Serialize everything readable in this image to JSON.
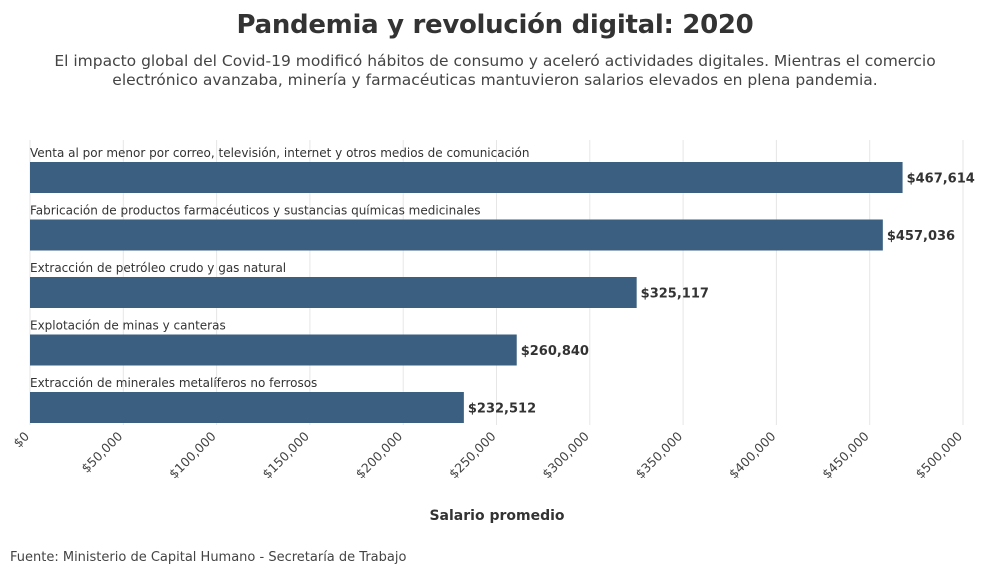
{
  "title": "Pandemia y revolución digital: 2020",
  "subtitle": "El impacto global del Covid-19 modificó hábitos de consumo y aceleró actividades digitales. Mientras el comercio electrónico avanzaba, minería y farmacéuticas mantuvieron salarios elevados en plena pandemia.",
  "source": "Fuente: Ministerio de Capital Humano - Secretaría de Trabajo",
  "colors": {
    "bar": "#3a5f80",
    "grid": "#e6e6e6",
    "text": "#333333"
  },
  "chart_data": {
    "type": "bar",
    "orientation": "horizontal",
    "categories": [
      "Venta al por menor por correo, televisión, internet y otros medios de comunicación",
      "Fabricación de productos farmacéuticos y sustancias químicas medicinales",
      "Extracción de petróleo crudo y gas natural",
      "Explotación de minas y canteras",
      "Extracción de minerales metalíferos no ferrosos"
    ],
    "values": [
      467614,
      457036,
      325117,
      260840,
      232512
    ],
    "value_labels": [
      "$467,614",
      "$457,036",
      "$325,117",
      "$260,840",
      "$232,512"
    ],
    "xlabel": "Salario promedio",
    "ylabel": "",
    "xlim": [
      0,
      500000
    ],
    "x_ticks": [
      0,
      50000,
      100000,
      150000,
      200000,
      250000,
      300000,
      350000,
      400000,
      450000,
      500000
    ],
    "x_tick_labels": [
      "$0",
      "$50,000",
      "$100,000",
      "$150,000",
      "$200,000",
      "$250,000",
      "$300,000",
      "$350,000",
      "$400,000",
      "$450,000",
      "$500,000"
    ],
    "grid": true,
    "legend": "none"
  }
}
